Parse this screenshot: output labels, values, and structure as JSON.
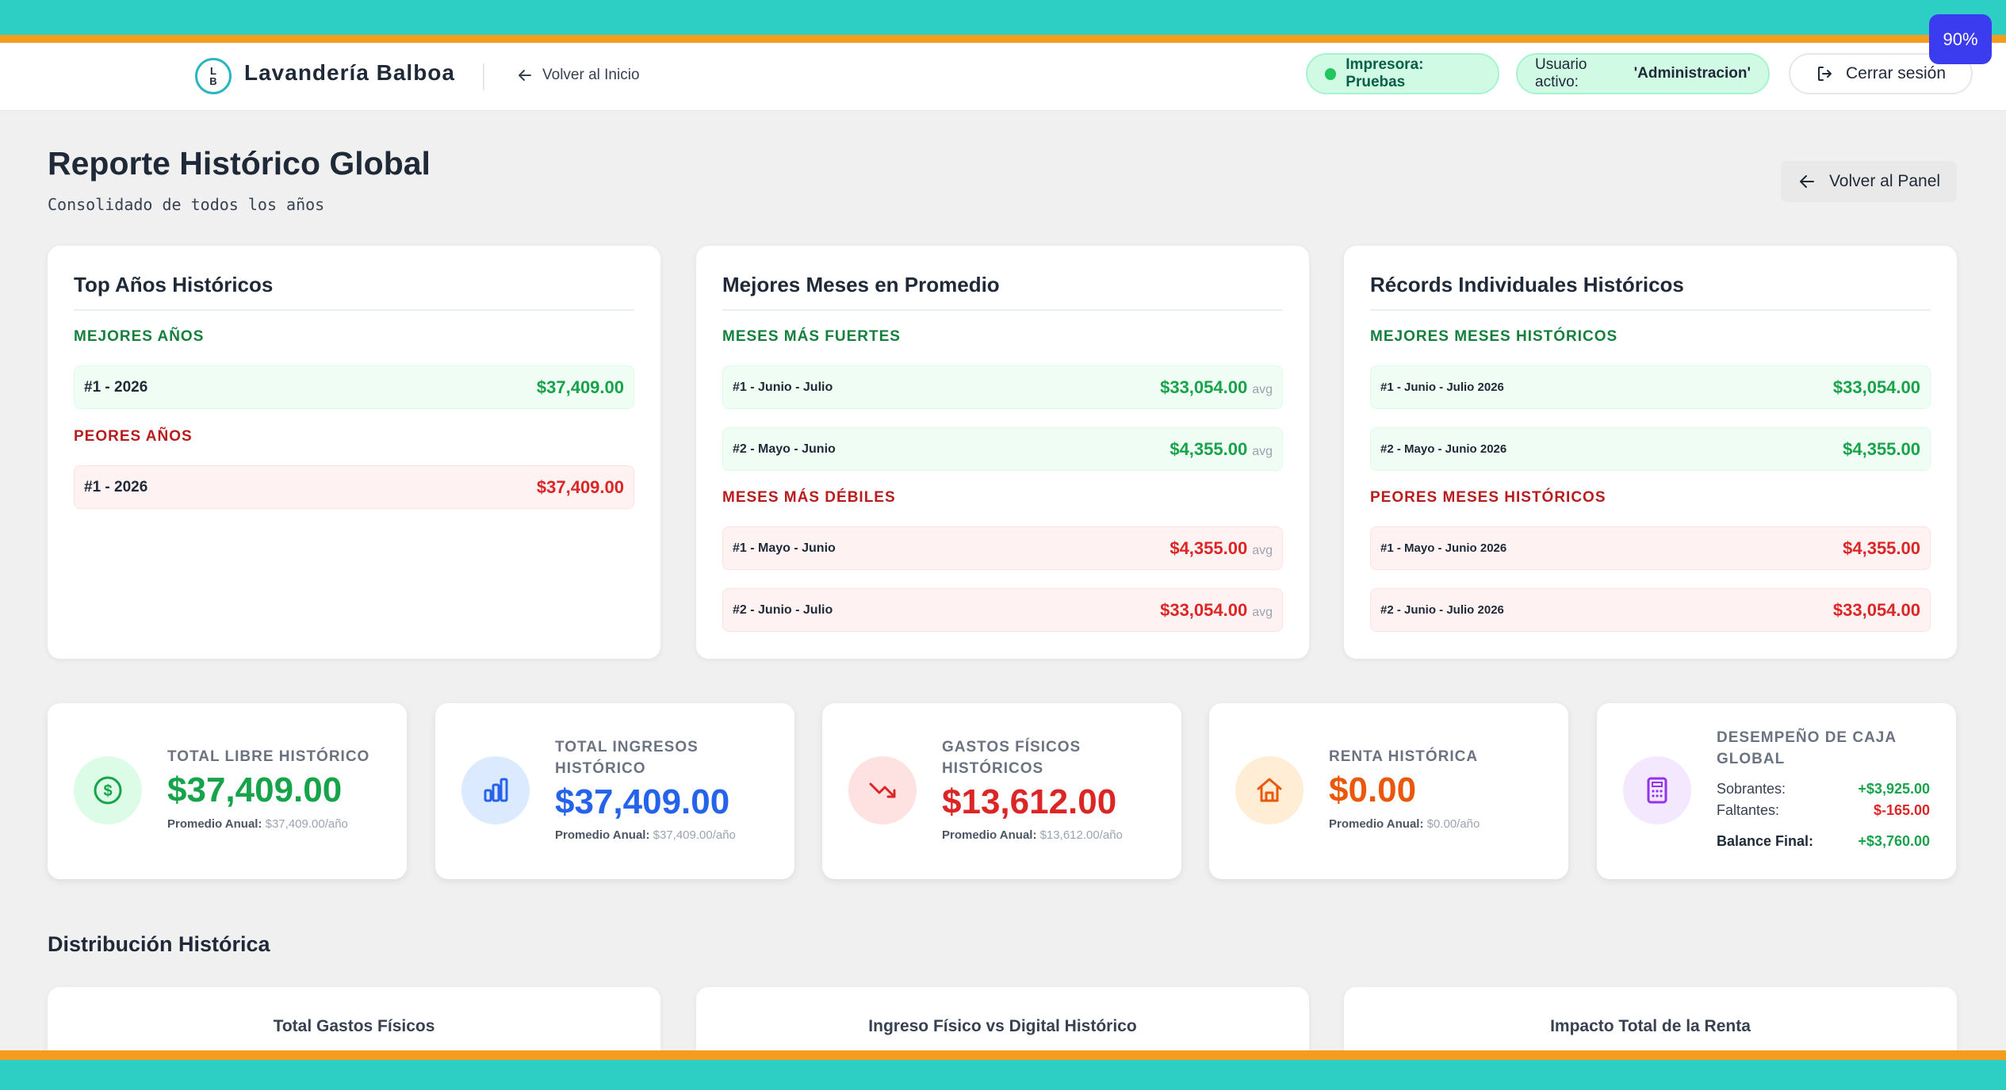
{
  "zoom": "90%",
  "header": {
    "logo_top": "L",
    "logo_bottom": "B",
    "brand": "Lavandería Balboa",
    "back_home": "Volver al Inicio",
    "printer": "Impresora: Pruebas",
    "user_label": "Usuario activo:",
    "user_value": "'Administracion'",
    "logout": "Cerrar sesión"
  },
  "page": {
    "title": "Reporte Histórico Global",
    "subtitle": "Consolidado de todos los años",
    "back_panel": "Volver al Panel"
  },
  "top_years": {
    "title": "Top Años Históricos",
    "best_label": "MEJORES AÑOS",
    "best": [
      {
        "name": "#1 - 2026",
        "value": "$37,409.00"
      }
    ],
    "worst_label": "PEORES AÑOS",
    "worst": [
      {
        "name": "#1 - 2026",
        "value": "$37,409.00"
      }
    ]
  },
  "best_months": {
    "title": "Mejores Meses en Promedio",
    "strong_label": "MESES MÁS FUERTES",
    "strong": [
      {
        "name": "#1 - Junio - Julio",
        "value": "$33,054.00",
        "suffix": "avg"
      },
      {
        "name": "#2 - Mayo - Junio",
        "value": "$4,355.00",
        "suffix": "avg"
      }
    ],
    "weak_label": "MESES MÁS DÉBILES",
    "weak": [
      {
        "name": "#1 - Mayo - Junio",
        "value": "$4,355.00",
        "suffix": "avg"
      },
      {
        "name": "#2 - Junio - Julio",
        "value": "$33,054.00",
        "suffix": "avg"
      }
    ]
  },
  "records": {
    "title": "Récords Individuales Históricos",
    "best_label": "MEJORES MESES HISTÓRICOS",
    "best": [
      {
        "name": "#1 - Junio - Julio 2026",
        "value": "$33,054.00"
      },
      {
        "name": "#2 - Mayo - Junio 2026",
        "value": "$4,355.00"
      }
    ],
    "worst_label": "PEORES MESES HISTÓRICOS",
    "worst": [
      {
        "name": "#1 - Mayo - Junio 2026",
        "value": "$4,355.00"
      },
      {
        "name": "#2 - Junio - Julio 2026",
        "value": "$33,054.00"
      }
    ]
  },
  "stats": {
    "libre": {
      "label": "TOTAL LIBRE HISTÓRICO",
      "value": "$37,409.00",
      "avg_label": "Promedio Anual:",
      "avg_value": "$37,409.00/año",
      "color": "#16a34a"
    },
    "ingresos": {
      "label1": "TOTAL INGRESOS",
      "label2": "HISTÓRICO",
      "value": "$37,409.00",
      "avg_label": "Promedio Anual:",
      "avg_value": "$37,409.00/año",
      "color": "#2563eb"
    },
    "gastos": {
      "label1": "GASTOS FÍSICOS",
      "label2": "HISTÓRICOS",
      "value": "$13,612.00",
      "avg_label": "Promedio Anual:",
      "avg_value": "$13,612.00/año",
      "color": "#dc2626"
    },
    "renta": {
      "label": "RENTA HISTÓRICA",
      "value": "$0.00",
      "avg_label": "Promedio Anual:",
      "avg_value": "$0.00/año",
      "color": "#ea580c"
    },
    "caja": {
      "label1": "DESEMPEÑO DE CAJA",
      "label2": "GLOBAL",
      "sobrantes_label": "Sobrantes:",
      "sobrantes": "+$3,925.00",
      "faltantes_label": "Faltantes:",
      "faltantes": "$-165.00",
      "balance_label": "Balance Final:",
      "balance": "+$3,760.00"
    }
  },
  "distribution": {
    "title": "Distribución Histórica",
    "charts": [
      "Total Gastos Físicos",
      "Ingreso Físico vs Digital Histórico",
      "Impacto Total de la Renta"
    ]
  }
}
